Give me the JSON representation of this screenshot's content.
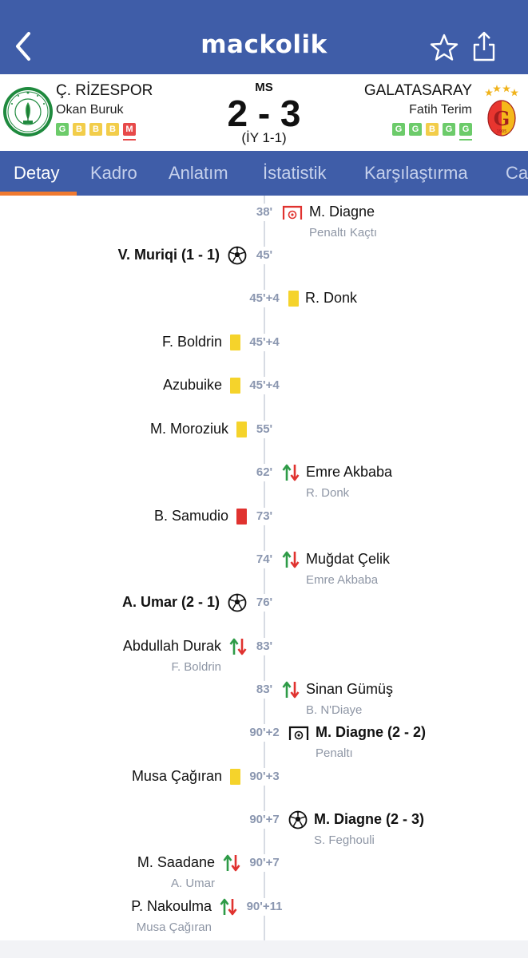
{
  "app": {
    "logo": "mackolik"
  },
  "icons": {
    "back": "chevron-left-icon",
    "favorite": "star-outline-icon",
    "share": "share-icon"
  },
  "match": {
    "status": "MS",
    "score": "2 - 3",
    "half_time": "(İY 1-1)",
    "home": {
      "name": "Ç. RİZESPOR",
      "coach": "Okan Buruk",
      "form": [
        "G",
        "B",
        "B",
        "B",
        "M"
      ]
    },
    "away": {
      "name": "GALATASARAY",
      "coach": "Fatih Terim",
      "form": [
        "G",
        "G",
        "B",
        "G",
        "G"
      ]
    }
  },
  "tabs": [
    {
      "label": "Detay",
      "active": true
    },
    {
      "label": "Kadro"
    },
    {
      "label": "Anlatım"
    },
    {
      "label": "İstatistik"
    },
    {
      "label": "Karşılaştırma"
    },
    {
      "label": "Ca"
    }
  ],
  "events": [
    {
      "minute": "38'",
      "side": "away",
      "icon": "missed-penalty-icon",
      "name": "M. Diagne",
      "sub": "Penaltı Kaçtı"
    },
    {
      "minute": "45'",
      "side": "home",
      "icon": "goal-icon",
      "name": "V. Muriqi (1 - 1)",
      "bold": true
    },
    {
      "minute": "45'+4",
      "side": "away",
      "icon": "yellow-card-icon",
      "name": "R. Donk"
    },
    {
      "minute": "45'+4",
      "side": "home",
      "icon": "yellow-card-icon",
      "name": "F. Boldrin"
    },
    {
      "minute": "45'+4",
      "side": "home",
      "icon": "yellow-card-icon",
      "name": "Azubuike"
    },
    {
      "minute": "55'",
      "side": "home",
      "icon": "yellow-card-icon",
      "name": "M. Moroziuk"
    },
    {
      "minute": "62'",
      "side": "away",
      "icon": "substitution-icon",
      "name": "Emre Akbaba",
      "sub": "R. Donk"
    },
    {
      "minute": "73'",
      "side": "home",
      "icon": "red-card-icon",
      "name": "B. Samudio"
    },
    {
      "minute": "74'",
      "side": "away",
      "icon": "substitution-icon",
      "name": "Muğdat Çelik",
      "sub": "Emre Akbaba"
    },
    {
      "minute": "76'",
      "side": "home",
      "icon": "goal-icon",
      "name": "A. Umar (2 - 1)",
      "bold": true
    },
    {
      "minute": "83'",
      "side": "home",
      "icon": "substitution-icon",
      "name": "Abdullah Durak",
      "sub": "F. Boldrin"
    },
    {
      "minute": "83'",
      "side": "away",
      "icon": "substitution-icon",
      "name": "Sinan Gümüş",
      "sub": "B. N'Diaye"
    },
    {
      "minute": "90'+2",
      "side": "away",
      "icon": "penalty-goal-icon",
      "name": "M. Diagne (2 - 2)",
      "sub": "Penaltı",
      "bold": true
    },
    {
      "minute": "90'+3",
      "side": "home",
      "icon": "yellow-card-icon",
      "name": "Musa Çağıran"
    },
    {
      "minute": "90'+7",
      "side": "away",
      "icon": "goal-icon",
      "name": "M. Diagne (2 - 3)",
      "sub": "S. Feghouli",
      "bold": true
    },
    {
      "minute": "90'+7",
      "side": "home",
      "icon": "substitution-icon",
      "name": "M. Saadane",
      "sub": "A. Umar"
    },
    {
      "minute": "90'+11",
      "side": "home",
      "icon": "substitution-icon",
      "name": "P. Nakoulma",
      "sub": "Musa Çağıran"
    }
  ]
}
